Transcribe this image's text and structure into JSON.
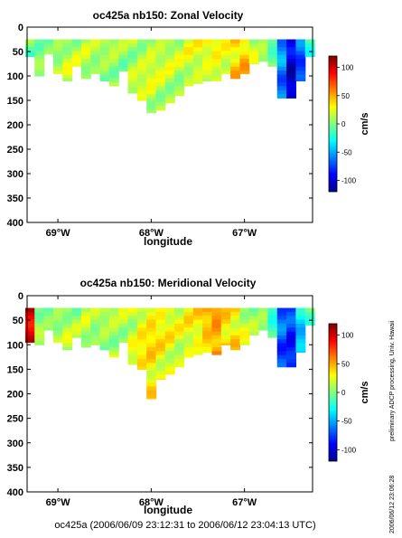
{
  "chart_data": [
    {
      "type": "heatmap",
      "title": "oc425a nb150: Zonal Velocity",
      "xlabel": "longitude",
      "ylabel": "",
      "x_tick_labels": [
        "69°W",
        "68°W",
        "67°W"
      ],
      "x_ticks": [
        -69,
        -68,
        -67
      ],
      "xlim": [
        -69.33,
        -66.27
      ],
      "y_ticks": [
        0,
        50,
        100,
        150,
        200,
        250,
        300,
        350,
        400
      ],
      "ylim": [
        400,
        0
      ],
      "colorbar": {
        "label": "cm/s",
        "ticks": [
          -100,
          -50,
          0,
          50,
          100
        ],
        "range": [
          -120,
          120
        ]
      },
      "section": {
        "x": [
          -69.3,
          -69.2,
          -69.1,
          -69.0,
          -68.9,
          -68.8,
          -68.7,
          -68.6,
          -68.5,
          -68.4,
          -68.3,
          -68.2,
          -68.1,
          -68.0,
          -67.9,
          -67.8,
          -67.7,
          -67.6,
          -67.5,
          -67.4,
          -67.3,
          -67.2,
          -67.1,
          -67.0,
          -66.9,
          -66.8,
          -66.7,
          -66.6,
          -66.5,
          -66.4,
          -66.3
        ],
        "bottom_depth": [
          60,
          100,
          55,
          95,
          110,
          80,
          105,
          95,
          110,
          120,
          90,
          135,
          150,
          175,
          170,
          155,
          140,
          120,
          115,
          110,
          110,
          95,
          105,
          95,
          75,
          70,
          80,
          145,
          145,
          110,
          60
        ],
        "profile_mean": [
          0,
          5,
          5,
          8,
          12,
          10,
          10,
          6,
          8,
          10,
          8,
          12,
          15,
          18,
          15,
          14,
          12,
          18,
          20,
          25,
          30,
          28,
          40,
          45,
          20,
          8,
          -10,
          -60,
          -100,
          -70,
          -20
        ]
      }
    },
    {
      "type": "heatmap",
      "title": "oc425a nb150: Meridional Velocity",
      "xlabel": "longitude",
      "ylabel": "",
      "x_tick_labels": [
        "69°W",
        "68°W",
        "67°W"
      ],
      "x_ticks": [
        -69,
        -68,
        -67
      ],
      "xlim": [
        -69.33,
        -66.27
      ],
      "y_ticks": [
        0,
        50,
        100,
        150,
        200,
        250,
        300,
        350,
        400
      ],
      "ylim": [
        400,
        0
      ],
      "colorbar": {
        "label": "cm/s",
        "ticks": [
          -100,
          -50,
          0,
          50,
          100
        ],
        "range": [
          -120,
          120
        ]
      },
      "section": {
        "x": [
          -69.3,
          -69.2,
          -69.1,
          -69.0,
          -68.9,
          -68.8,
          -68.7,
          -68.6,
          -68.5,
          -68.4,
          -68.3,
          -68.2,
          -68.1,
          -68.0,
          -67.9,
          -67.8,
          -67.7,
          -67.6,
          -67.5,
          -67.4,
          -67.3,
          -67.2,
          -67.1,
          -67.0,
          -66.9,
          -66.8,
          -66.7,
          -66.6,
          -66.5,
          -66.4,
          -66.3
        ],
        "bottom_depth": [
          95,
          100,
          70,
          95,
          110,
          85,
          105,
          100,
          110,
          125,
          95,
          140,
          150,
          210,
          170,
          160,
          145,
          125,
          120,
          115,
          120,
          100,
          110,
          100,
          80,
          70,
          85,
          145,
          145,
          115,
          60
        ],
        "profile_mean": [
          100,
          10,
          5,
          8,
          10,
          5,
          10,
          5,
          10,
          12,
          15,
          20,
          30,
          35,
          30,
          25,
          20,
          25,
          30,
          45,
          55,
          40,
          35,
          20,
          10,
          5,
          -20,
          -70,
          -80,
          -40,
          -10
        ]
      }
    }
  ],
  "footer": "oc425a (2006/06/09 23:12:31 to 2006/06/12 23:04:13 UTC)",
  "side_note_processing": "preliminary ADCP processing,   Univ. Hawaii",
  "side_note_date": "2006/06/12 23:06:28",
  "colors": {
    "text": "#000000",
    "nodata": "#ffffff"
  }
}
